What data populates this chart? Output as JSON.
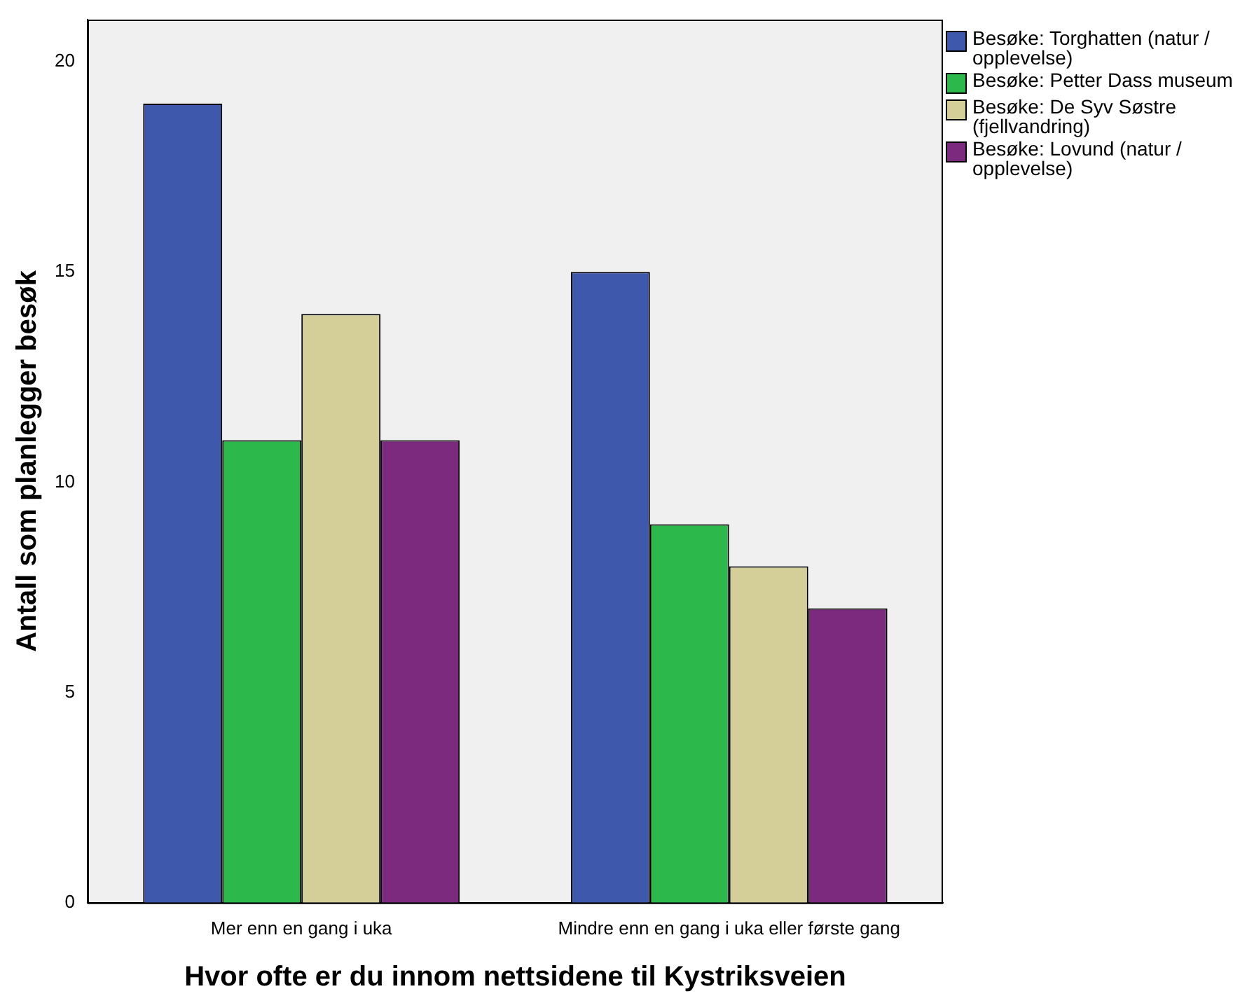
{
  "chart_data": {
    "type": "bar",
    "xlabel": "Hvor ofte er du innom nettsidene til Kystriksveien",
    "ylabel": "Antall som planlegger besøk",
    "categories": [
      "Mer enn en gang i uka",
      "Mindre enn en gang i uka eller første gang"
    ],
    "series": [
      {
        "name": "Besøke: Torghatten (natur / opplevelse)",
        "color": "#3e58ac",
        "values": [
          19,
          15
        ]
      },
      {
        "name": "Besøke: Petter Dass museum",
        "color": "#2db84b",
        "values": [
          11,
          9
        ]
      },
      {
        "name": "Besøke: De Syv Søstre (fjellvandring)",
        "color": "#d4cf98",
        "values": [
          14,
          8
        ]
      },
      {
        "name": "Besøke: Lovund (natur / opplevelse)",
        "color": "#7b2a7d",
        "values": [
          11,
          7
        ]
      }
    ],
    "ylim": [
      0,
      21
    ],
    "yticks": [
      0,
      5,
      10,
      15,
      20
    ],
    "grid": false,
    "legend": "top right"
  }
}
